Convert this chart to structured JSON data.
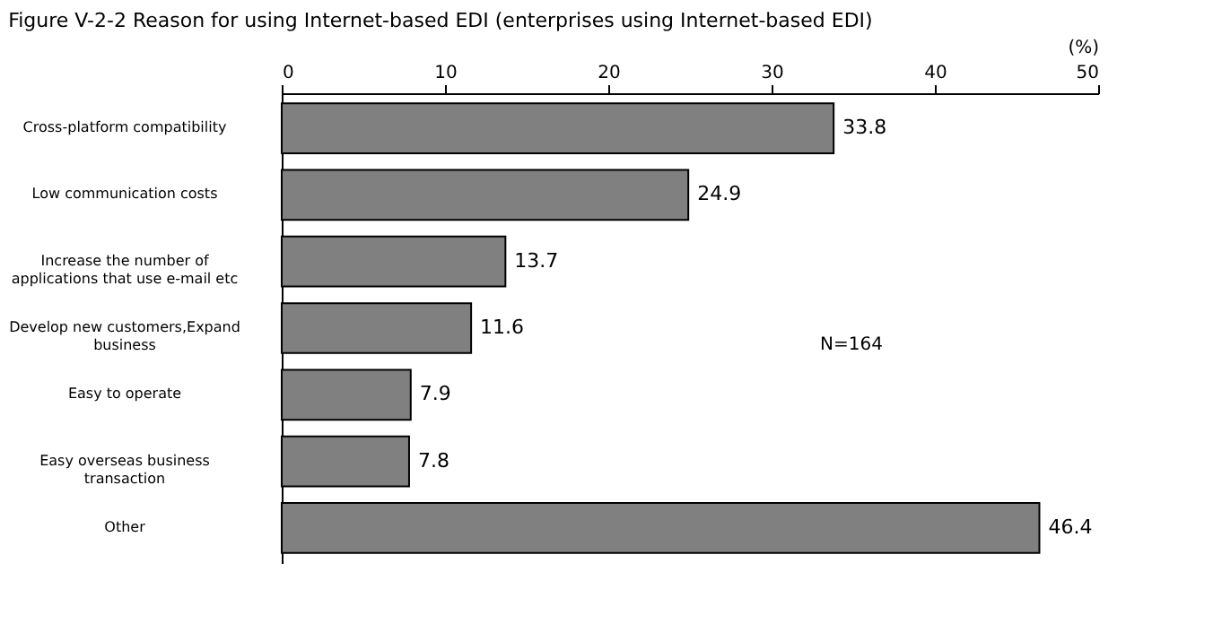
{
  "chart_data": {
    "type": "bar",
    "orientation": "horizontal",
    "title": "Figure V-2-2 Reason for using Internet-based EDI (enterprises using Internet-based EDI)",
    "xlabel": "(%)",
    "categories": [
      "Cross-platform compatibility",
      "Low communication costs",
      "Increase the number of\napplications that use e-mail etc",
      "Develop new customers,Expand\nbusiness",
      "Easy to operate",
      "Easy overseas business\ntransaction",
      "Other"
    ],
    "values": [
      33.8,
      24.9,
      13.7,
      11.6,
      7.9,
      7.8,
      46.4
    ],
    "color": "#808080",
    "xlim": [
      0,
      50
    ],
    "xticks": [
      0,
      10,
      20,
      30,
      40,
      50
    ],
    "data_labels": true,
    "grid": false,
    "annotations": [
      "N=164"
    ]
  }
}
